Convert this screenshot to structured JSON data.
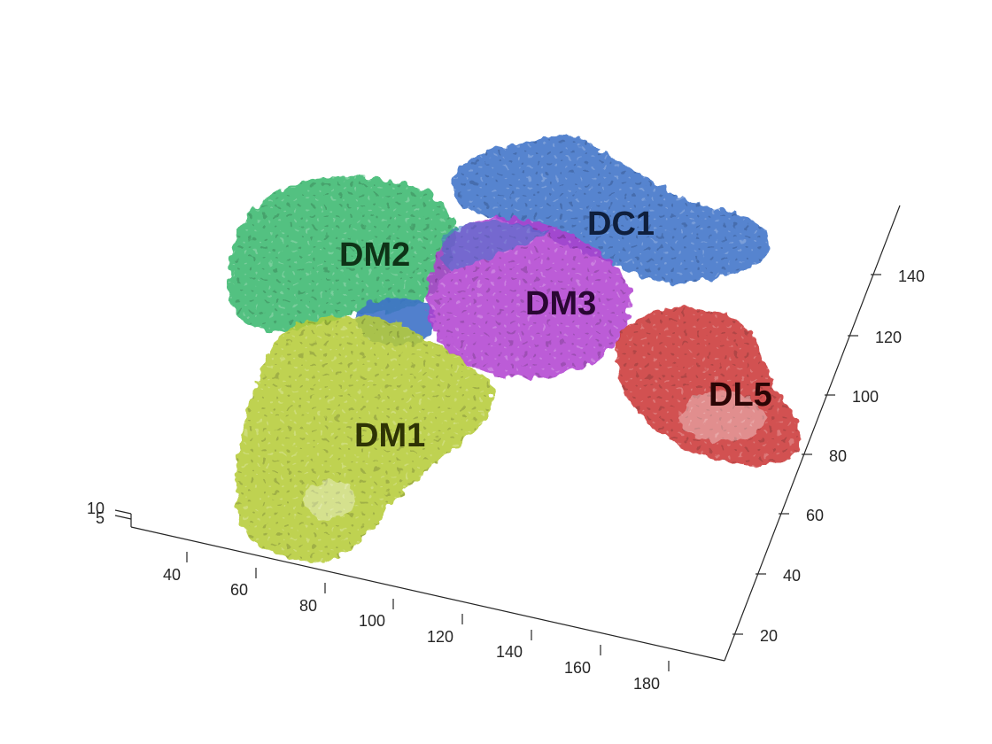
{
  "figure": {
    "type": "3d-isosurface-plot",
    "axes": {
      "x_ticks": [
        "40",
        "60",
        "80",
        "100",
        "120",
        "140",
        "160",
        "180"
      ],
      "y_ticks": [
        "20",
        "40",
        "60",
        "80",
        "100",
        "120",
        "140"
      ],
      "z_ticks": [
        "10",
        "5"
      ]
    },
    "regions": [
      {
        "label": "DM2",
        "color": "#3cb870"
      },
      {
        "label": "DC1",
        "color": "#3d72c8"
      },
      {
        "label": "DM3",
        "color": "#b040d0"
      },
      {
        "label": "DL5",
        "color": "#cc3a3a"
      },
      {
        "label": "DM1",
        "color": "#b6cc3a"
      }
    ]
  }
}
